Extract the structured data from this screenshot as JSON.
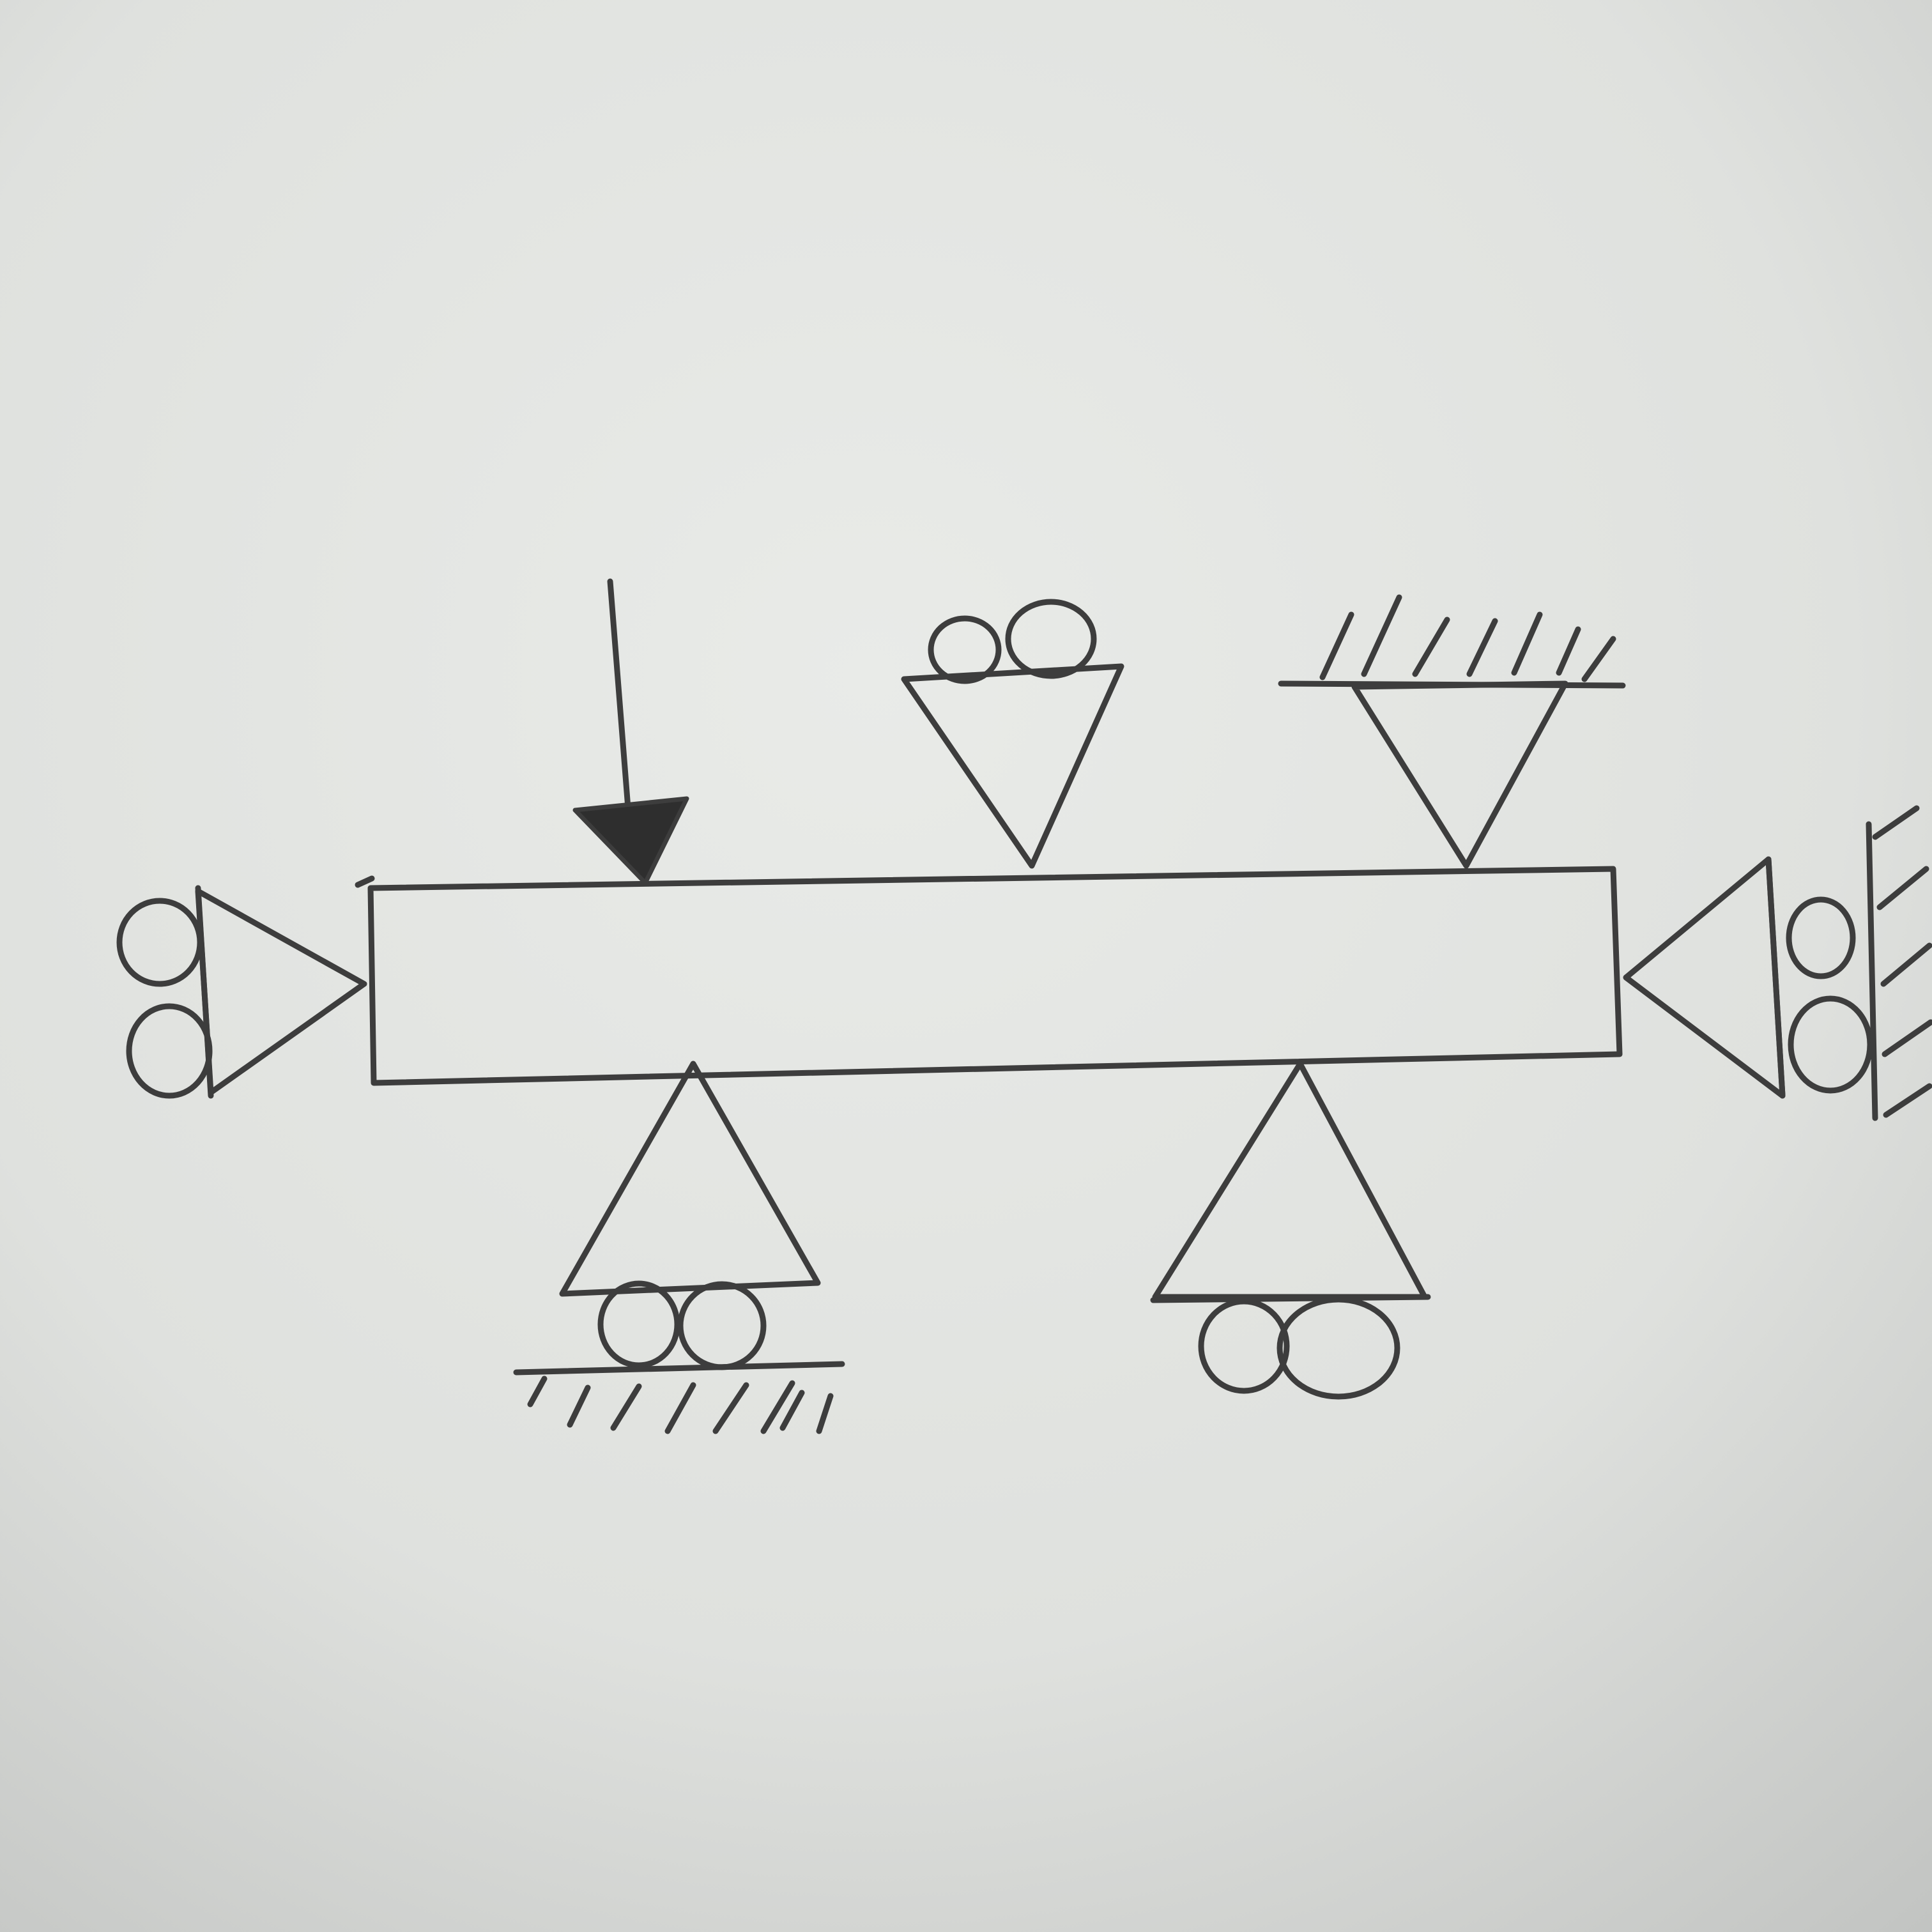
{
  "diagram": {
    "kind": "hand-drawn beam with supports and a point load",
    "beam": {},
    "load": {
      "direction": "downward"
    },
    "supports": [
      {
        "side": "top",
        "type": "roller"
      },
      {
        "side": "top",
        "type": "pinned-to-ground"
      },
      {
        "side": "bottom",
        "type": "roller-on-ground"
      },
      {
        "side": "bottom",
        "type": "roller"
      },
      {
        "side": "left",
        "type": "roller"
      },
      {
        "side": "right",
        "type": "roller-against-wall"
      }
    ]
  },
  "colors": {
    "paper_light": "#e9ebe8",
    "paper_mid": "#dfe1de",
    "paper_dark": "#c2c4c2",
    "pencil": "#3d3d3d"
  }
}
